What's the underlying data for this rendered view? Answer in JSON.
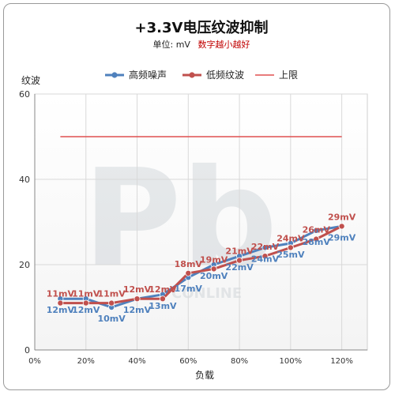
{
  "chart_data": {
    "type": "line",
    "title": "+3.3V电压纹波抑制",
    "subtitle_prefix": "单位: mV",
    "subtitle_note": "数字越小越好",
    "xlabel": "负载",
    "ylabel": "纹波",
    "x": [
      "10%",
      "20%",
      "30%",
      "40%",
      "50%",
      "60%",
      "70%",
      "80%",
      "90%",
      "100%",
      "110%",
      "120%"
    ],
    "x_ticks": [
      "0%",
      "20%",
      "40%",
      "60%",
      "80%",
      "100%",
      "120%"
    ],
    "y_ticks": [
      "0",
      "20",
      "40",
      "60"
    ],
    "xlim": [
      0,
      130
    ],
    "ylim": [
      0,
      60
    ],
    "grid": true,
    "legend_position": "top",
    "series": [
      {
        "name": "高频噪声",
        "color": "#4f81bd",
        "values": [
          12,
          12,
          10,
          12,
          13,
          17,
          20,
          22,
          24,
          25,
          28,
          29
        ],
        "labels": [
          "12mV",
          "12mV",
          "10mV",
          "12mV",
          "13mV",
          "17mV",
          "20mV",
          "22mV",
          "24mV",
          "25mV",
          "28mV",
          "29mV"
        ]
      },
      {
        "name": "低频纹波",
        "color": "#c0504d",
        "values": [
          11,
          11,
          11,
          12,
          12,
          18,
          19,
          21,
          22,
          24,
          26,
          29
        ],
        "labels": [
          "11mV",
          "11mV",
          "11mV",
          "12mV",
          "12mV",
          "18mV",
          "19mV",
          "21mV",
          "22mV",
          "24mV",
          "26mV",
          "29mV"
        ]
      },
      {
        "name": "上限",
        "color": "#e05050",
        "values": [
          50,
          50,
          50,
          50,
          50,
          50,
          50,
          50,
          50,
          50,
          50,
          50
        ]
      }
    ],
    "watermark": "PCONLINE"
  }
}
